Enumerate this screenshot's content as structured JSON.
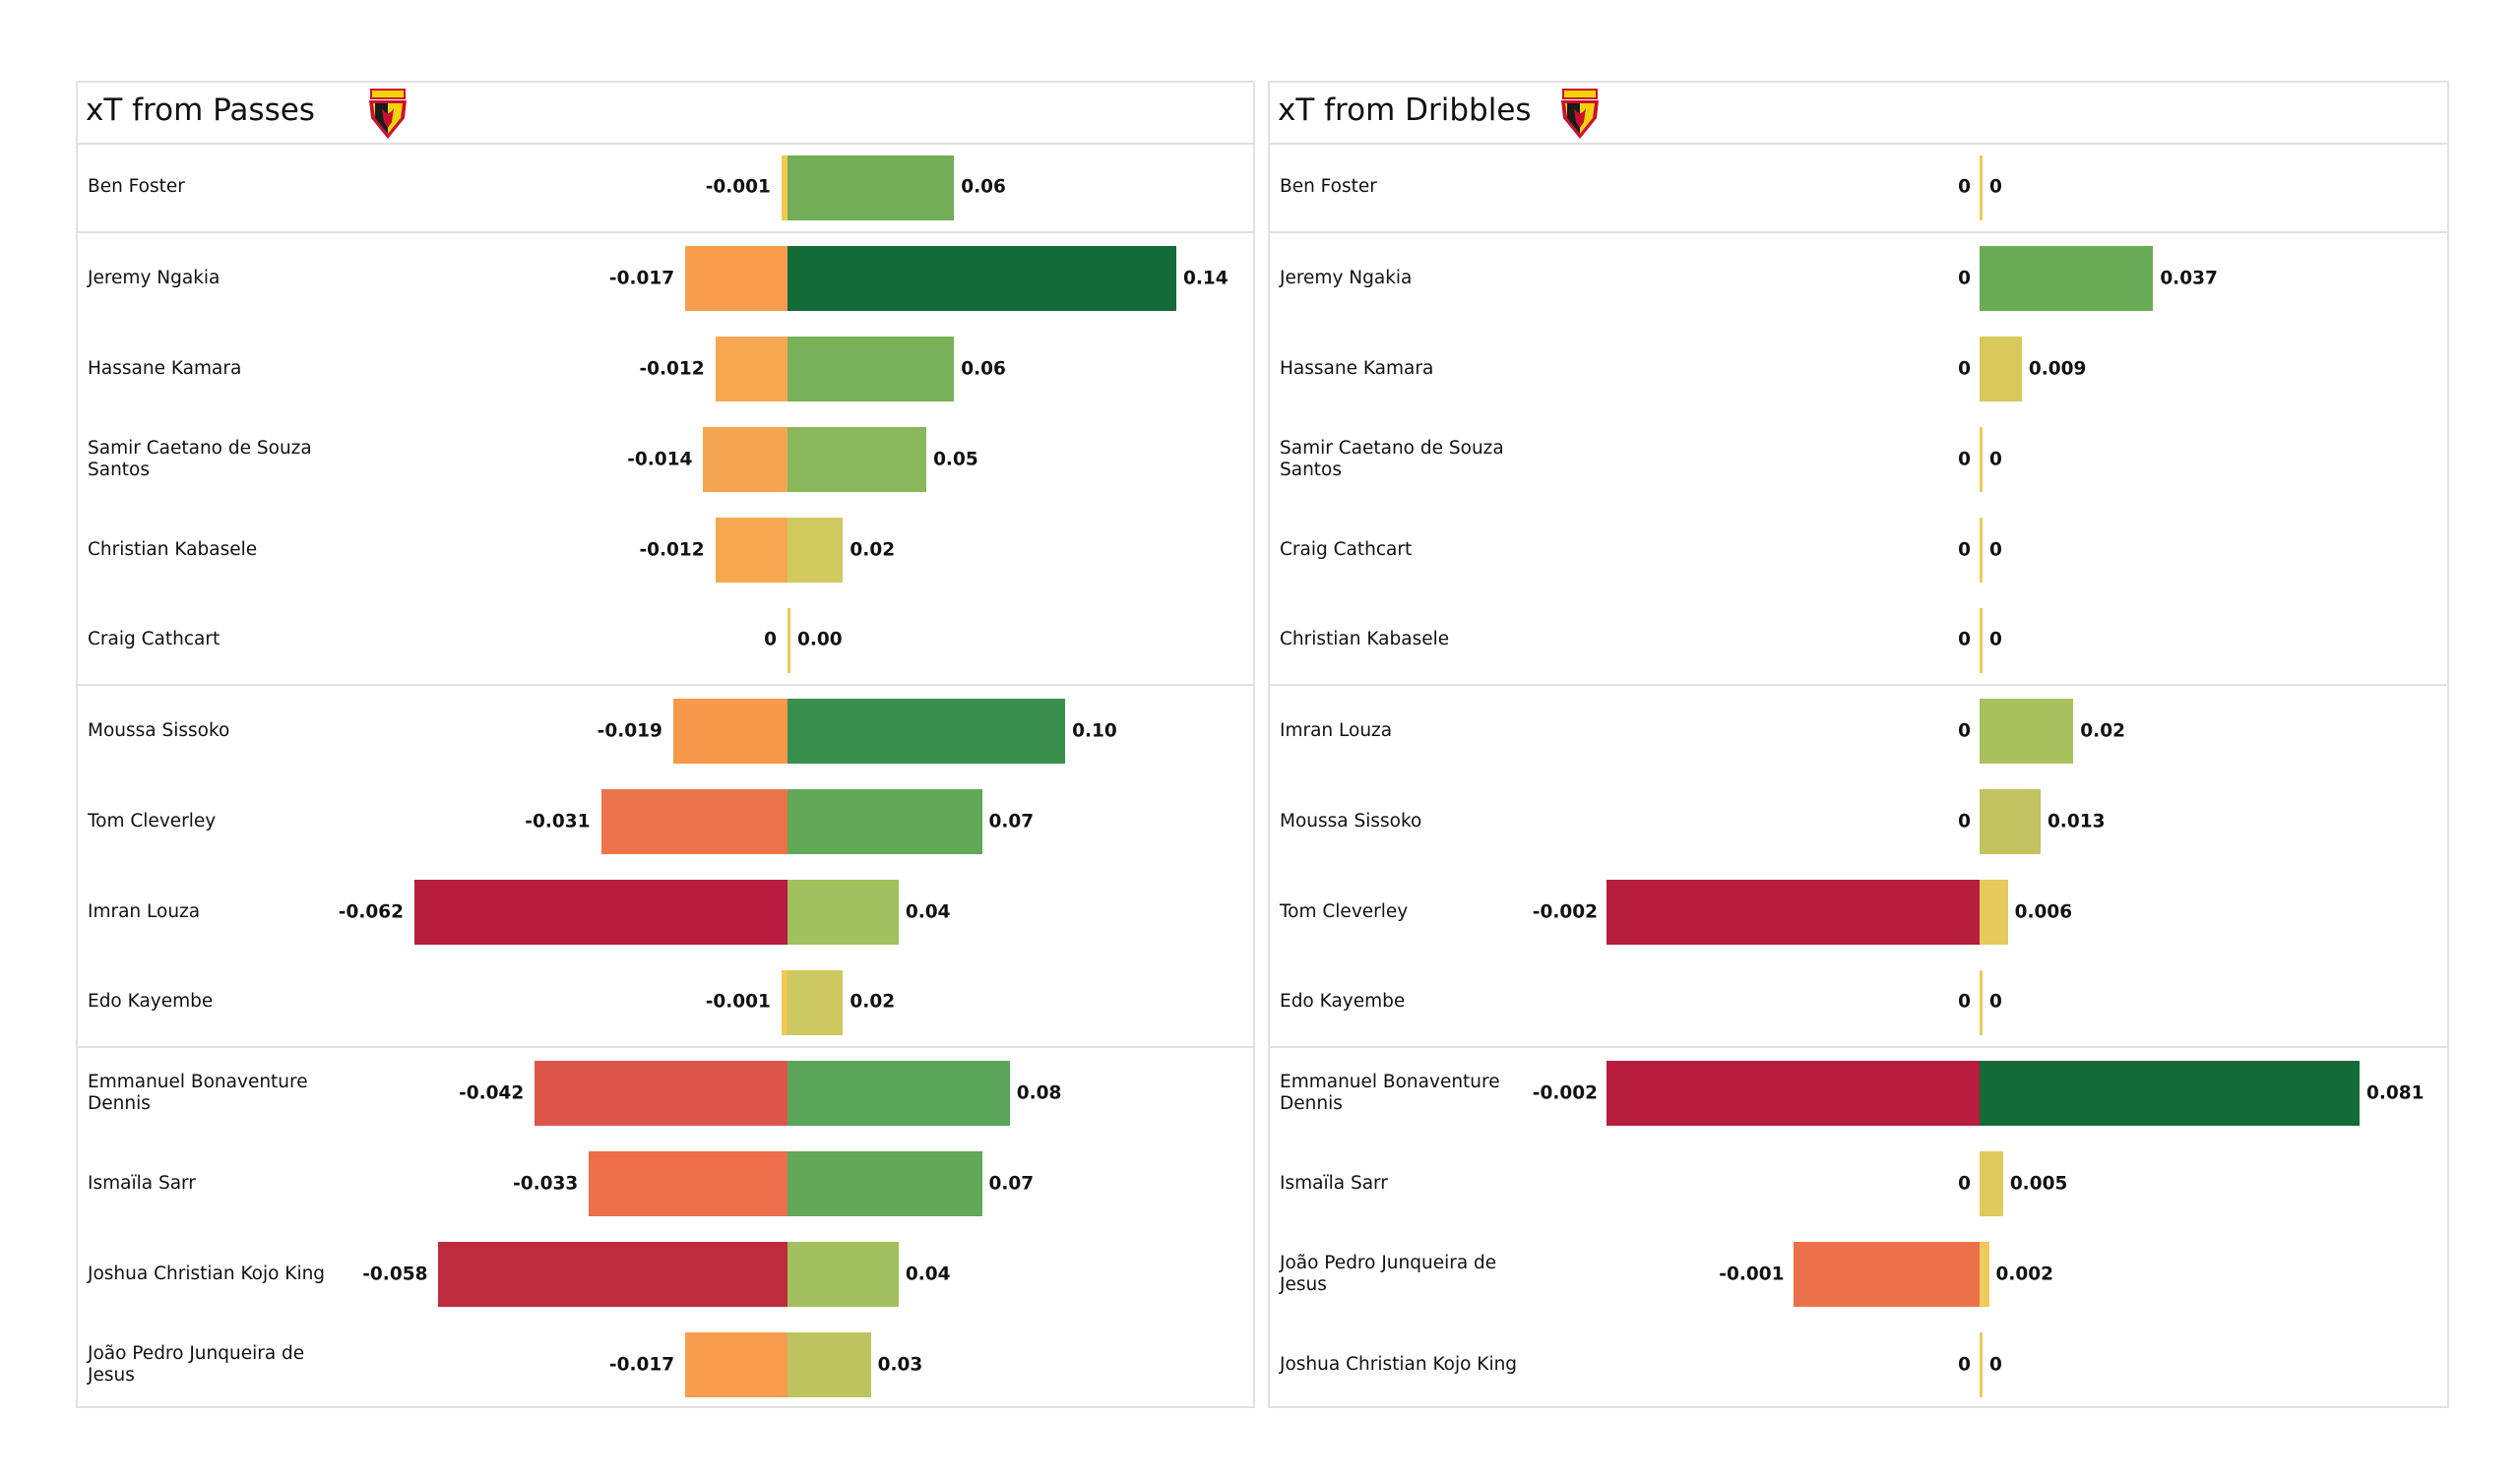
{
  "chart_data": [
    {
      "type": "bar",
      "orientation": "horizontal-diverging",
      "title": "xT from Passes",
      "logo": "watford-crest",
      "groups_end_after": [
        0,
        5,
        9
      ],
      "players": [
        {
          "name": "Ben Foster",
          "neg": -0.001,
          "neg_label": "-0.001",
          "neg_color": "#f2c84f",
          "pos": 0.06,
          "pos_label": "0.06",
          "pos_color": "#72ad57"
        },
        {
          "name": "Jeremy Ngakia",
          "neg": -0.017,
          "neg_label": "-0.017",
          "neg_color": "#f89d4e",
          "pos": 0.14,
          "pos_label": "0.14",
          "pos_color": "#136b38"
        },
        {
          "name": "Hassane Kamara",
          "neg": -0.012,
          "neg_label": "-0.012",
          "neg_color": "#f6a851",
          "pos": 0.06,
          "pos_label": "0.06",
          "pos_color": "#79b158"
        },
        {
          "name": "Samir Caetano de Souza Santos",
          "neg": -0.014,
          "neg_label": "-0.014",
          "neg_color": "#f5a552",
          "pos": 0.05,
          "pos_label": "0.05",
          "pos_color": "#88b85b"
        },
        {
          "name": "Christian Kabasele",
          "neg": -0.012,
          "neg_label": "-0.012",
          "neg_color": "#f6a851",
          "pos": 0.02,
          "pos_label": "0.02",
          "pos_color": "#d0c95e"
        },
        {
          "name": "Craig Cathcart",
          "neg": 0,
          "neg_label": "0",
          "neg_color": "#e8cb5a",
          "pos": 0.0,
          "pos_label": "0.00",
          "pos_color": "#e8cb5a"
        },
        {
          "name": "Moussa Sissoko",
          "neg": -0.019,
          "neg_label": "-0.019",
          "neg_color": "#f8984b",
          "pos": 0.1,
          "pos_label": "0.10",
          "pos_color": "#3a8f4e"
        },
        {
          "name": "Tom Cleverley",
          "neg": -0.031,
          "neg_label": "-0.031",
          "neg_color": "#ec744a",
          "pos": 0.07,
          "pos_label": "0.07",
          "pos_color": "#63a758"
        },
        {
          "name": "Imran Louza",
          "neg": -0.062,
          "neg_label": "-0.062",
          "neg_color": "#b81c3e",
          "pos": 0.04,
          "pos_label": "0.04",
          "pos_color": "#a3c05e"
        },
        {
          "name": "Edo Kayembe",
          "neg": -0.001,
          "neg_label": "-0.001",
          "neg_color": "#f2c84f",
          "pos": 0.02,
          "pos_label": "0.02",
          "pos_color": "#cdc85f"
        },
        {
          "name": "Emmanuel Bonaventure Dennis",
          "neg": -0.042,
          "neg_label": "-0.042",
          "neg_color": "#dd5549",
          "pos": 0.08,
          "pos_label": "0.08",
          "pos_color": "#5aa55a"
        },
        {
          "name": "Ismaïla Sarr",
          "neg": -0.033,
          "neg_label": "-0.033",
          "neg_color": "#ec6e4a",
          "pos": 0.07,
          "pos_label": "0.07",
          "pos_color": "#63a758"
        },
        {
          "name": "Joshua Christian Kojo King",
          "neg": -0.058,
          "neg_label": "-0.058",
          "neg_color": "#be2a3e",
          "pos": 0.04,
          "pos_label": "0.04",
          "pos_color": "#a3c05e"
        },
        {
          "name": "João Pedro Junqueira de Jesus",
          "neg": -0.017,
          "neg_label": "-0.017",
          "neg_color": "#f89d4e",
          "pos": 0.03,
          "pos_label": "0.03",
          "pos_color": "#bcc460"
        }
      ]
    },
    {
      "type": "bar",
      "orientation": "horizontal-diverging",
      "title": "xT from Dribbles",
      "logo": "watford-crest",
      "groups_end_after": [
        0,
        5,
        9
      ],
      "players": [
        {
          "name": "Ben Foster",
          "neg": 0,
          "neg_label": "0",
          "neg_color": "#e8cb5a",
          "pos": 0,
          "pos_label": "0",
          "pos_color": "#e8cb5a"
        },
        {
          "name": "Jeremy Ngakia",
          "neg": 0,
          "neg_label": "0",
          "neg_color": "#e8cb5a",
          "pos": 0.037,
          "pos_label": "0.037",
          "pos_color": "#6aac56"
        },
        {
          "name": "Hassane Kamara",
          "neg": 0,
          "neg_label": "0",
          "neg_color": "#e8cb5a",
          "pos": 0.009,
          "pos_label": "0.009",
          "pos_color": "#d7c95c"
        },
        {
          "name": "Samir Caetano de Souza Santos",
          "neg": 0,
          "neg_label": "0",
          "neg_color": "#e8cb5a",
          "pos": 0,
          "pos_label": "0",
          "pos_color": "#e8cb5a"
        },
        {
          "name": "Craig Cathcart",
          "neg": 0,
          "neg_label": "0",
          "neg_color": "#e8cb5a",
          "pos": 0,
          "pos_label": "0",
          "pos_color": "#e8cb5a"
        },
        {
          "name": "Christian Kabasele",
          "neg": 0,
          "neg_label": "0",
          "neg_color": "#e8cb5a",
          "pos": 0,
          "pos_label": "0",
          "pos_color": "#e8cb5a"
        },
        {
          "name": "Imran Louza",
          "neg": 0,
          "neg_label": "0",
          "neg_color": "#e8cb5a",
          "pos": 0.02,
          "pos_label": "0.02",
          "pos_color": "#a9c05e"
        },
        {
          "name": "Moussa Sissoko",
          "neg": 0,
          "neg_label": "0",
          "neg_color": "#e8cb5a",
          "pos": 0.013,
          "pos_label": "0.013",
          "pos_color": "#c1c45f"
        },
        {
          "name": "Tom Cleverley",
          "neg": -0.002,
          "neg_label": "-0.002",
          "neg_color": "#b81c3e",
          "pos": 0.006,
          "pos_label": "0.006",
          "pos_color": "#e5cb5b"
        },
        {
          "name": "Edo Kayembe",
          "neg": 0,
          "neg_label": "0",
          "neg_color": "#e8cb5a",
          "pos": 0,
          "pos_label": "0",
          "pos_color": "#e8cb5a"
        },
        {
          "name": "Emmanuel Bonaventure Dennis",
          "neg": -0.002,
          "neg_label": "-0.002",
          "neg_color": "#b81c3e",
          "pos": 0.081,
          "pos_label": "0.081",
          "pos_color": "#136b38"
        },
        {
          "name": "Ismaïla Sarr",
          "neg": 0,
          "neg_label": "0",
          "neg_color": "#e8cb5a",
          "pos": 0.005,
          "pos_label": "0.005",
          "pos_color": "#e0ca5c"
        },
        {
          "name": "João Pedro Junqueira de Jesus",
          "neg": -0.001,
          "neg_label": "-0.001",
          "neg_color": "#ec714a",
          "pos": 0.002,
          "pos_label": "0.002",
          "pos_color": "#eccc5a"
        },
        {
          "name": "Joshua Christian Kojo King",
          "neg": 0,
          "neg_label": "0",
          "neg_color": "#e8cb5a",
          "pos": 0,
          "pos_label": "0",
          "pos_color": "#e8cb5a"
        }
      ]
    }
  ]
}
